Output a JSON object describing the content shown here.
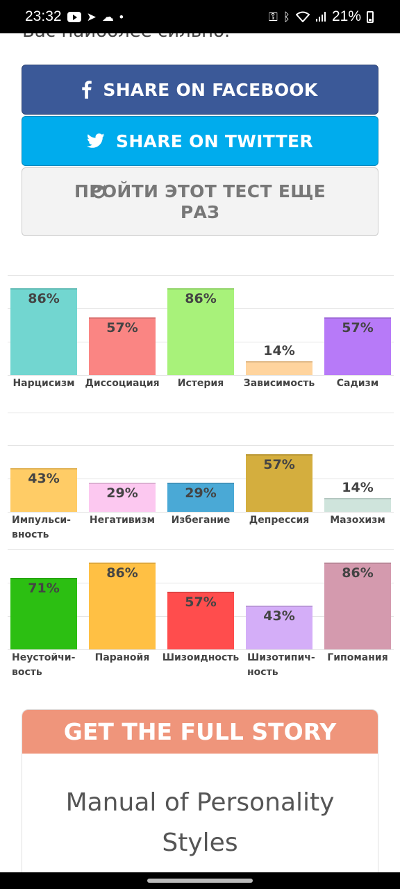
{
  "status_bar": {
    "time": "23:32",
    "battery": "21%"
  },
  "intro_text": "Вас наиболее сильно.",
  "buttons": {
    "facebook": "SHARE ON FACEBOOK",
    "twitter": "SHARE ON TWITTER",
    "retry": "ПРОЙТИ ЭТОТ ТЕСТ ЕЩЕ РАЗ"
  },
  "chart_data": [
    {
      "type": "bar",
      "categories": [
        "Нарцисизм",
        "Диссоциация",
        "Истерия",
        "Зависимость",
        "Садизм"
      ],
      "values": [
        86,
        57,
        86,
        14,
        57
      ],
      "value_labels": [
        "86%",
        "57%",
        "86%",
        "14%",
        "57%"
      ],
      "colors": [
        "#72d6d0",
        "#fa8583",
        "#a8f27a",
        "#ffd49e",
        "#b77af8"
      ],
      "ylim": [
        0,
        100
      ]
    },
    {
      "type": "bar",
      "categories": [
        "Импульси-вность",
        "Негативизм",
        "Избегание",
        "Депрессия",
        "Мазохизм"
      ],
      "values": [
        43,
        29,
        29,
        57,
        14
      ],
      "value_labels": [
        "43%",
        "29%",
        "29%",
        "57%",
        "14%"
      ],
      "colors": [
        "#ffcc66",
        "#fcc8f0",
        "#4aa9d6",
        "#d4ae3e",
        "#cfe4dc"
      ],
      "ylim": [
        0,
        100
      ]
    },
    {
      "type": "bar",
      "categories": [
        "Неустойчи-вость",
        "Паранойя",
        "Шизоидность",
        "Шизотипич-ность",
        "Гипомания"
      ],
      "values": [
        71,
        86,
        57,
        43,
        86
      ],
      "value_labels": [
        "71%",
        "86%",
        "57%",
        "43%",
        "86%"
      ],
      "colors": [
        "#2cbf12",
        "#ffc044",
        "#ff4d4d",
        "#d4aef8",
        "#d49aae"
      ],
      "ylim": [
        0,
        100
      ]
    }
  ],
  "story": {
    "heading": "GET THE FULL STORY",
    "book_title": "Manual of Personality Styles"
  },
  "icons": [
    "youtube-icon",
    "telegram-icon",
    "cloud-icon",
    "key-icon",
    "bluetooth-icon",
    "wifi-icon",
    "signal-icon",
    "battery-icon",
    "facebook-icon",
    "twitter-icon",
    "refresh-icon"
  ]
}
